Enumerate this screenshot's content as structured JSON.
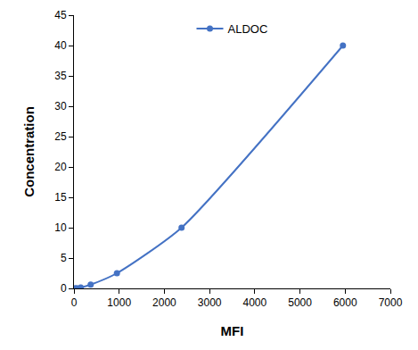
{
  "chart_data": {
    "type": "line",
    "x_label": "MFI",
    "y_label": "Concentration",
    "series": [
      {
        "name": "ALDOC",
        "color": "#4472c4",
        "marker": "circle",
        "line_style": "solid",
        "x": [
          15,
          60,
          150,
          370,
          950,
          2380,
          5950
        ],
        "values": [
          0,
          0.039,
          0.156,
          0.625,
          2.5,
          10,
          40
        ]
      }
    ],
    "xlim": [
      0,
      7000
    ],
    "xticks": [
      0,
      1000,
      2000,
      3000,
      4000,
      5000,
      6000,
      7000
    ],
    "ylim": [
      0,
      45
    ],
    "yticks": [
      0,
      5,
      10,
      15,
      20,
      25,
      30,
      35,
      40,
      45
    ],
    "grid": false,
    "legend": "top"
  }
}
